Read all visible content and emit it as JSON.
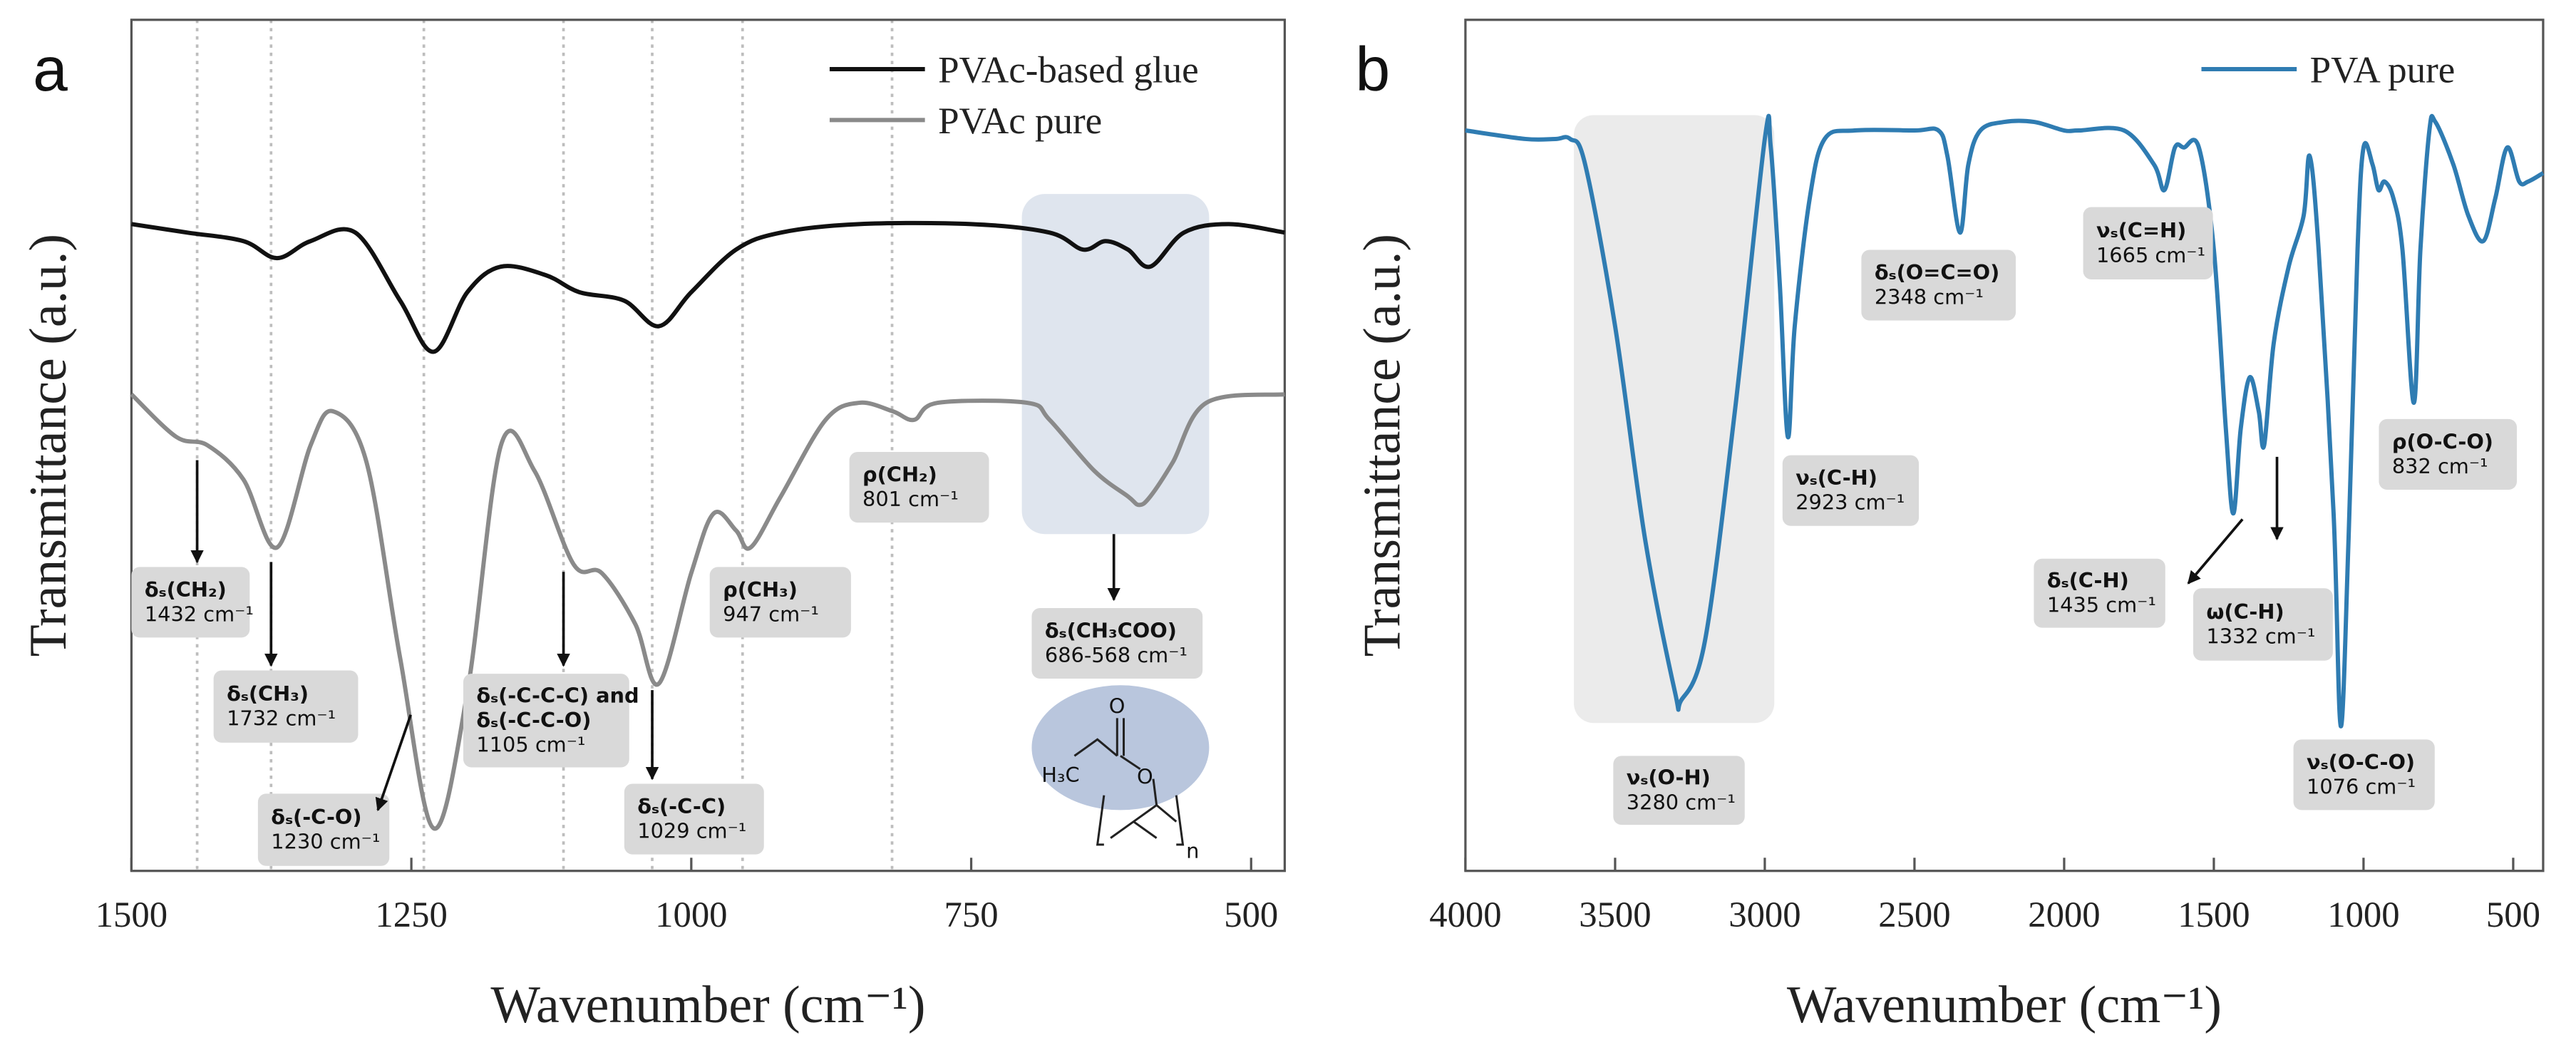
{
  "chart_data": [
    {
      "type": "line",
      "panel_label": "a",
      "xlabel": "Wavenumber (cm⁻¹)",
      "ylabel": "Transmittance (a.u.)",
      "xlim": [
        1500,
        470
      ],
      "ylim": [
        0,
        100
      ],
      "xticks": [
        1500,
        1250,
        1000,
        750,
        500
      ],
      "legend": "upper right",
      "series": [
        {
          "name": "PVAc-based glue",
          "color": "#111111",
          "x": [
            1500,
            1450,
            1400,
            1370,
            1340,
            1300,
            1260,
            1230,
            1200,
            1170,
            1130,
            1100,
            1060,
            1029,
            1000,
            960,
            920,
            850,
            750,
            680,
            650,
            630,
            610,
            590,
            560,
            520,
            470
          ],
          "values": [
            76,
            75,
            74,
            72,
            74,
            75,
            67,
            61,
            68,
            71,
            70,
            68,
            67,
            64,
            68,
            73,
            75,
            76,
            76,
            75,
            73,
            74,
            73,
            71,
            75,
            76,
            75
          ]
        },
        {
          "name": "PVAc pure",
          "color": "#8a8a8a",
          "x": [
            1500,
            1460,
            1432,
            1400,
            1370,
            1340,
            1320,
            1290,
            1260,
            1230,
            1200,
            1170,
            1140,
            1105,
            1080,
            1050,
            1029,
            1000,
            980,
            960,
            947,
            920,
            880,
            850,
            820,
            801,
            780,
            700,
            680,
            640,
            610,
            600,
            590,
            570,
            540,
            470
          ],
          "values": [
            56,
            51,
            50,
            46,
            38,
            50,
            54,
            48,
            25,
            5,
            21,
            50,
            47,
            36,
            35,
            29,
            22,
            35,
            42,
            40,
            38,
            44,
            53,
            55,
            54,
            53,
            55,
            55,
            53,
            47,
            44,
            43,
            44,
            48,
            55,
            56
          ]
        }
      ],
      "annotations": [
        {
          "lines": [
            "δₛ(CH₂)",
            "1432 cm⁻¹"
          ]
        },
        {
          "lines": [
            "δₛ(CH₃)",
            "1732 cm⁻¹"
          ]
        },
        {
          "lines": [
            "δₛ(-C-O)",
            "1230 cm⁻¹"
          ]
        },
        {
          "lines": [
            "δₛ(-C-C-C) and",
            "δₛ(-C-C-O)",
            "1105 cm⁻¹"
          ]
        },
        {
          "lines": [
            "δₛ(-C-C)",
            "1029 cm⁻¹"
          ]
        },
        {
          "lines": [
            "ρ(CH₃)",
            "947 cm⁻¹"
          ]
        },
        {
          "lines": [
            "ρ(CH₂)",
            "801 cm⁻¹"
          ]
        },
        {
          "lines": [
            "δₛ(CH₃COO)",
            "686-568 cm⁻¹"
          ]
        }
      ],
      "structure_labels": [
        "O",
        "H₃C",
        "O",
        "n"
      ]
    },
    {
      "type": "line",
      "panel_label": "b",
      "xlabel": "Wavenumber (cm⁻¹)",
      "ylabel": "Transmittance (a.u.)",
      "xlim": [
        4000,
        400
      ],
      "ylim": [
        0,
        100
      ],
      "xticks": [
        4000,
        3500,
        3000,
        2500,
        2000,
        1500,
        1000,
        500
      ],
      "legend": "upper right",
      "series": [
        {
          "name": "PVA pure",
          "color": "#2f7cb2",
          "x": [
            4000,
            3800,
            3700,
            3650,
            3600,
            3500,
            3400,
            3300,
            3280,
            3200,
            3100,
            3000,
            2980,
            2950,
            2923,
            2900,
            2850,
            2800,
            2700,
            2500,
            2420,
            2390,
            2348,
            2320,
            2280,
            2200,
            2100,
            2000,
            1950,
            1800,
            1700,
            1665,
            1630,
            1600,
            1550,
            1500,
            1460,
            1435,
            1410,
            1380,
            1350,
            1332,
            1300,
            1250,
            1200,
            1180,
            1150,
            1100,
            1076,
            1050,
            1020,
            1000,
            970,
            950,
            930,
            900,
            870,
            832,
            810,
            780,
            760,
            700,
            650,
            600,
            560,
            520,
            480,
            450,
            400
          ],
          "values": [
            87,
            86,
            86,
            86,
            83,
            64,
            39,
            21,
            20,
            27,
            54,
            86,
            85,
            69,
            51,
            64,
            79,
            86,
            87,
            87,
            87,
            84,
            75,
            83,
            87,
            88,
            88,
            87,
            87,
            87,
            83,
            80,
            85,
            85,
            85,
            73,
            52,
            42,
            52,
            58,
            54,
            50,
            62,
            71,
            77,
            84,
            73,
            42,
            17,
            39,
            73,
            85,
            83,
            80,
            81,
            79,
            73,
            55,
            73,
            87,
            88,
            83,
            77,
            74,
            79,
            85,
            81,
            81,
            82
          ]
        }
      ],
      "annotations": [
        {
          "lines": [
            "νₛ(O-H)",
            "3280 cm⁻¹"
          ]
        },
        {
          "lines": [
            "νₛ(C-H)",
            "2923 cm⁻¹"
          ]
        },
        {
          "lines": [
            "δₛ(O=C=O)",
            "2348 cm⁻¹"
          ]
        },
        {
          "lines": [
            "νₛ(C=H)",
            "1665 cm⁻¹"
          ]
        },
        {
          "lines": [
            "δₛ(C-H)",
            "1435 cm⁻¹"
          ]
        },
        {
          "lines": [
            "ω(C-H)",
            "1332 cm⁻¹"
          ]
        },
        {
          "lines": [
            "ρ(O-C-O)",
            "832 cm⁻¹"
          ]
        },
        {
          "lines": [
            "νₛ(O-C-O)",
            "1076 cm⁻¹"
          ]
        }
      ]
    }
  ]
}
